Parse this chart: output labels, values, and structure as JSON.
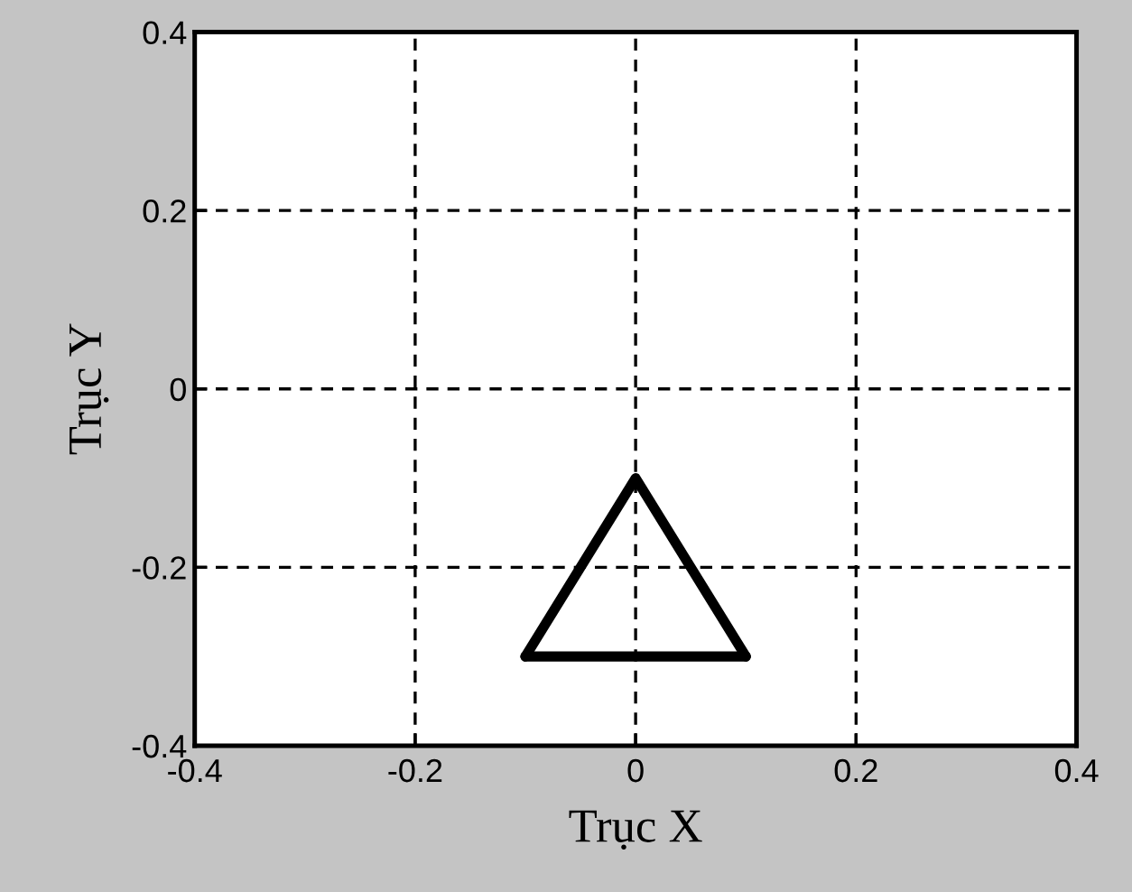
{
  "chart_data": {
    "type": "line",
    "xlabel": "Trục X",
    "ylabel": "Trục Y",
    "series": [
      {
        "color": "#000000",
        "x": [
          -0.1,
          0,
          0.1
        ],
        "values": [
          -0.3,
          -0.1,
          -0.3
        ]
      },
      {
        "color": "#000000",
        "x": [
          -0.1,
          0.1
        ],
        "values": [
          -0.3,
          -0.3
        ]
      }
    ],
    "xlim": [
      -0.4,
      0.4
    ],
    "ylim": [
      -0.4,
      0.4
    ],
    "xticks": [
      -0.4,
      -0.2,
      0,
      0.2,
      0.4
    ],
    "yticks": [
      -0.4,
      -0.2,
      0,
      0.2,
      0.4
    ],
    "grid": true,
    "line_style": "solid"
  }
}
